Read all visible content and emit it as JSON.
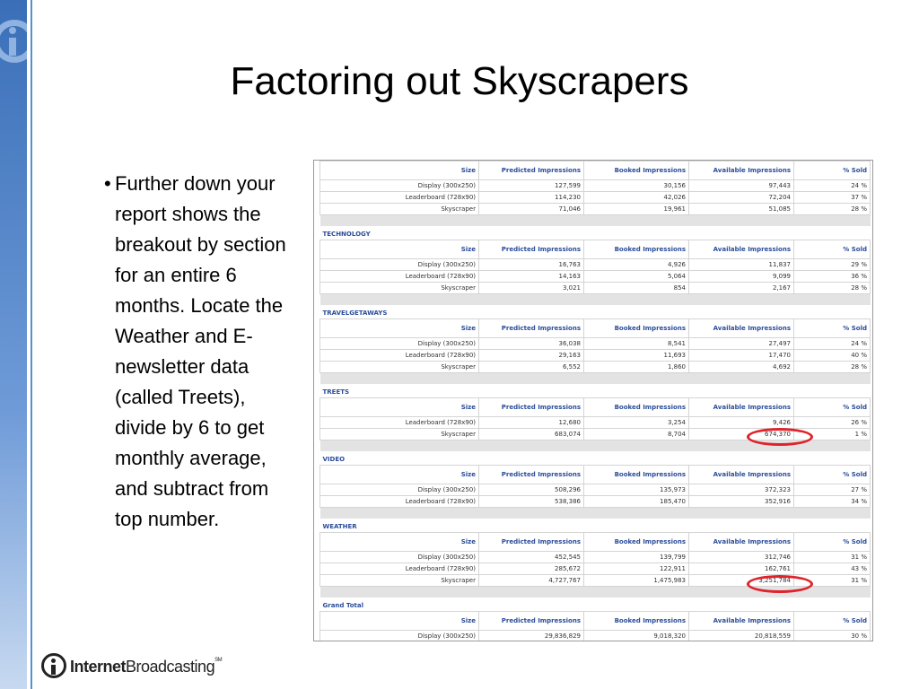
{
  "title": "Factoring out Skyscrapers",
  "bullet": "Further down your report shows the breakout by section for an entire 6 months. Locate the Weather and E-newsletter data (called Treets), divide by 6 to get monthly average, and subtract from top number.",
  "columns": [
    "Size",
    "Predicted Impressions",
    "Booked Impressions",
    "Available Impressions",
    "% Sold"
  ],
  "sections": [
    {
      "name": "",
      "rows": [
        [
          "Display (300x250)",
          "127,599",
          "30,156",
          "97,443",
          "24 %"
        ],
        [
          "Leaderboard (728x90)",
          "114,230",
          "42,026",
          "72,204",
          "37 %"
        ],
        [
          "Skyscraper",
          "71,046",
          "19,961",
          "51,085",
          "28 %"
        ]
      ]
    },
    {
      "name": "TECHNOLOGY",
      "rows": [
        [
          "Display (300x250)",
          "16,763",
          "4,926",
          "11,837",
          "29 %"
        ],
        [
          "Leaderboard (728x90)",
          "14,163",
          "5,064",
          "9,099",
          "36 %"
        ],
        [
          "Skyscraper",
          "3,021",
          "854",
          "2,167",
          "28 %"
        ]
      ]
    },
    {
      "name": "TRAVELGETAWAYS",
      "rows": [
        [
          "Display (300x250)",
          "36,038",
          "8,541",
          "27,497",
          "24 %"
        ],
        [
          "Leaderboard (728x90)",
          "29,163",
          "11,693",
          "17,470",
          "40 %"
        ],
        [
          "Skyscraper",
          "6,552",
          "1,860",
          "4,692",
          "28 %"
        ]
      ]
    },
    {
      "name": "TREETS",
      "rows": [
        [
          "Leaderboard (728x90)",
          "12,680",
          "3,254",
          "9,426",
          "26 %"
        ],
        [
          "Skyscraper",
          "683,074",
          "8,704",
          "674,370",
          "1 %"
        ]
      ]
    },
    {
      "name": "VIDEO",
      "rows": [
        [
          "Display (300x250)",
          "508,296",
          "135,973",
          "372,323",
          "27 %"
        ],
        [
          "Leaderboard (728x90)",
          "538,386",
          "185,470",
          "352,916",
          "34 %"
        ]
      ]
    },
    {
      "name": "WEATHER",
      "rows": [
        [
          "Display (300x250)",
          "452,545",
          "139,799",
          "312,746",
          "31 %"
        ],
        [
          "Leaderboard (728x90)",
          "285,672",
          "122,911",
          "162,761",
          "43 %"
        ],
        [
          "Skyscraper",
          "4,727,767",
          "1,475,983",
          "3,251,784",
          "31 %"
        ]
      ]
    },
    {
      "name": "Grand Total",
      "rows": [
        [
          "Display (300x250)",
          "29,836,829",
          "9,018,320",
          "20,818,559",
          "30 %"
        ]
      ]
    }
  ],
  "footer": {
    "brand_bold": "Internet",
    "brand_rest": "Broadcasting",
    "mark": "SM"
  },
  "highlight_color": "#e0222a"
}
